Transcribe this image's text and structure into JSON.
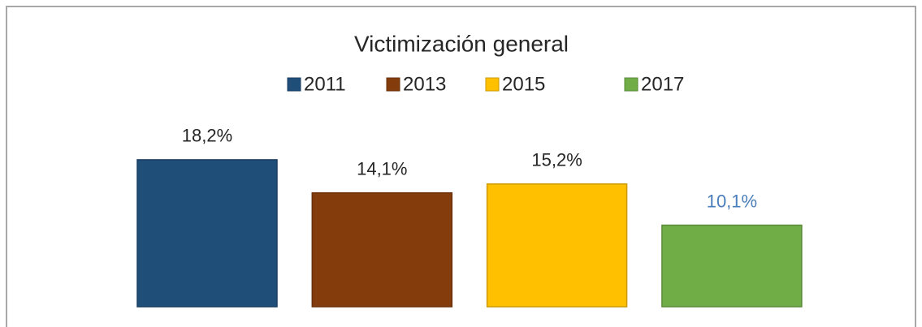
{
  "chart_data": {
    "type": "bar",
    "title": "Victimización general",
    "series": [
      {
        "name": "2011",
        "color": "#1f4e79",
        "values": [
          18.2
        ],
        "value_labels": [
          "18,2%"
        ],
        "label_color": "#262626"
      },
      {
        "name": "2013",
        "color": "#843c0c",
        "values": [
          14.1
        ],
        "value_labels": [
          "14,1%"
        ],
        "label_color": "#262626"
      },
      {
        "name": "2015",
        "color": "#ffc000",
        "values": [
          15.2
        ],
        "value_labels": [
          "15,2%"
        ],
        "label_color": "#262626"
      },
      {
        "name": "2017",
        "color": "#70ad47",
        "values": [
          10.1
        ],
        "value_labels": [
          "10,1%"
        ],
        "label_color": "#4a7ebb"
      }
    ],
    "legend": "top"
  }
}
